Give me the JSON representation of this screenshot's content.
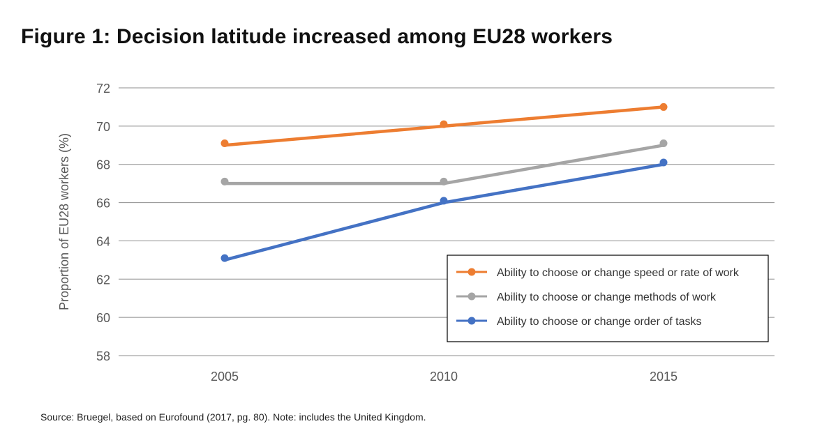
{
  "title": "Figure 1: Decision latitude increased among EU28 workers",
  "source": "Source: Bruegel, based on Eurofound (2017, pg. 80). Note: includes the United Kingdom.",
  "chart_data": {
    "type": "line",
    "x": [
      "2005",
      "2010",
      "2015"
    ],
    "ylabel": "Proportion of EU28 workers (%)",
    "ylim": [
      58,
      72
    ],
    "yticks": [
      58,
      60,
      62,
      64,
      66,
      68,
      70,
      72
    ],
    "grid": true,
    "legend_position": "bottom-right",
    "series": [
      {
        "name": "Ability to choose or change speed or rate of work",
        "color": "#ED7D31",
        "values": [
          69,
          70,
          71
        ],
        "markers": [
          69.1,
          70.1,
          71.0
        ]
      },
      {
        "name": "Ability to choose or change methods of work",
        "color": "#A5A5A5",
        "values": [
          67,
          67,
          69
        ],
        "markers": [
          67.1,
          67.1,
          69.1
        ]
      },
      {
        "name": "Ability to choose or change order of tasks",
        "color": "#4472C4",
        "values": [
          63,
          66,
          68
        ],
        "markers": [
          63.1,
          66.1,
          68.1
        ]
      }
    ]
  }
}
